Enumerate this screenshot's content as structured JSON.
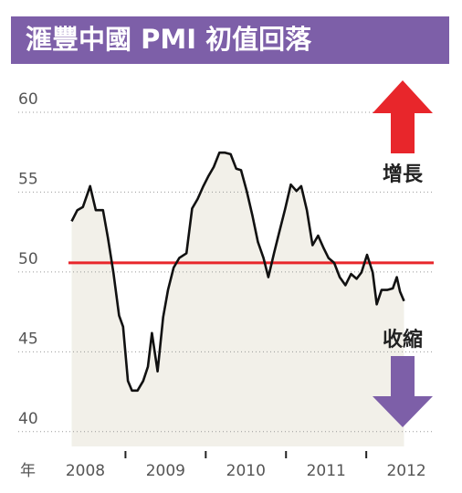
{
  "chart_data": {
    "type": "line",
    "title": "滙豐中國 PMI 初值回落",
    "xlabel": "年",
    "x": [
      2008.33,
      2008.4,
      2008.47,
      2008.56,
      2008.63,
      2008.72,
      2008.78,
      2008.85,
      2008.92,
      2008.97,
      2009.03,
      2009.08,
      2009.15,
      2009.22,
      2009.28,
      2009.33,
      2009.4,
      2009.47,
      2009.53,
      2009.6,
      2009.67,
      2009.76,
      2009.83,
      2009.9,
      2009.97,
      2010.03,
      2010.1,
      2010.17,
      2010.24,
      2010.31,
      2010.38,
      2010.44,
      2010.51,
      2010.58,
      2010.65,
      2010.72,
      2010.78,
      2010.85,
      2010.92,
      2010.99,
      2011.06,
      2011.13,
      2011.19,
      2011.26,
      2011.33,
      2011.4,
      2011.47,
      2011.53,
      2011.6,
      2011.67,
      2011.74,
      2011.81,
      2011.88,
      2011.94,
      2012.01,
      2012.08,
      2012.13,
      2012.19,
      2012.26,
      2012.33,
      2012.38,
      2012.42,
      2012.47
    ],
    "series": [
      {
        "name": "PMI",
        "color": "#111111",
        "area_color": "#f2f0e9",
        "values": [
          52.6,
          53.3,
          53.5,
          54.8,
          53.3,
          53.3,
          51.6,
          49.4,
          46.7,
          46.0,
          42.6,
          42.0,
          42.0,
          42.6,
          43.5,
          45.6,
          43.2,
          46.6,
          48.3,
          49.7,
          50.3,
          50.6,
          53.4,
          54.0,
          54.8,
          55.4,
          56.0,
          56.9,
          56.9,
          56.8,
          55.9,
          55.8,
          54.5,
          53.0,
          51.3,
          50.3,
          49.1,
          50.6,
          52.0,
          53.4,
          54.9,
          54.5,
          54.8,
          53.3,
          51.1,
          51.7,
          50.9,
          50.3,
          50.0,
          49.1,
          48.6,
          49.3,
          49.0,
          49.4,
          50.5,
          49.4,
          47.4,
          48.3,
          48.3,
          48.4,
          49.1,
          48.2,
          47.6
        ]
      }
    ],
    "xlim": [
      2008.29,
      2012.84
    ],
    "xticks": [
      {
        "value": 2008.5,
        "label": "2008"
      },
      {
        "value": 2009.5,
        "label": "2009"
      },
      {
        "value": 2010.5,
        "label": "2010"
      },
      {
        "value": 2011.5,
        "label": "2011"
      },
      {
        "value": 2012.5,
        "label": "2012"
      }
    ],
    "xdividers": [
      2009,
      2010,
      2011,
      2012
    ],
    "ylim": [
      38.5,
      62
    ],
    "yticks": [
      40,
      45,
      50,
      55,
      60
    ],
    "grid": true,
    "reference_line": {
      "value": 50,
      "color": "#e8262b"
    },
    "annotations": [
      {
        "text": "增長",
        "color": "#e8262b"
      },
      {
        "text": "收縮",
        "color": "#7d5fa8"
      }
    ],
    "title_color": "#7d5fa8"
  }
}
